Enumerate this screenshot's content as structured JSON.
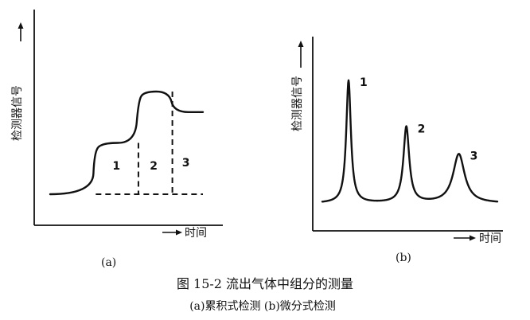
{
  "chart_data": [
    {
      "type": "line",
      "panel_label": "(a)",
      "ylabel": "检测器信号",
      "xlabel": "时间",
      "series": [
        {
          "x": [
            0,
            25,
            26,
            30,
            50,
            52,
            55,
            70,
            73,
            90
          ],
          "y": [
            1,
            1,
            5,
            6,
            6,
            10,
            11,
            11,
            9,
            9
          ]
        }
      ],
      "component_labels": [
        "1",
        "2",
        "3"
      ],
      "dashed_baseline": true
    },
    {
      "type": "line",
      "panel_label": "(b)",
      "ylabel": "检测器信号",
      "xlabel": "时间",
      "peak_labels": [
        "1",
        "2",
        "3"
      ],
      "peaks": [
        {
          "center": 15,
          "height": 10,
          "width": 1.6
        },
        {
          "center": 48,
          "height": 6.2,
          "width": 2.0
        },
        {
          "center": 78,
          "height": 4.0,
          "width": 4.0
        }
      ]
    }
  ],
  "caption": {
    "title": "图 15-2  流出气体中组分的测量",
    "subtitle": "(a)累积式检测  (b)微分式检测"
  }
}
